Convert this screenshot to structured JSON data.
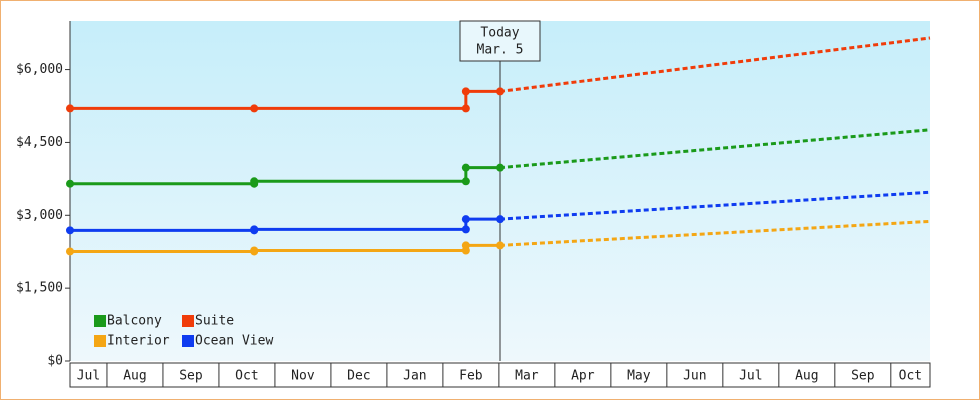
{
  "chart_data": {
    "type": "step-forecast",
    "xlim": [
      0.34,
      15.7
    ],
    "xticks": [
      {
        "value": 0,
        "label": "Jul"
      },
      {
        "value": 1,
        "label": "Aug"
      },
      {
        "value": 2,
        "label": "Sep"
      },
      {
        "value": 3,
        "label": "Oct"
      },
      {
        "value": 4,
        "label": "Nov"
      },
      {
        "value": 5,
        "label": "Dec"
      },
      {
        "value": 6,
        "label": "Jan"
      },
      {
        "value": 7,
        "label": "Feb"
      },
      {
        "value": 8,
        "label": "Mar"
      },
      {
        "value": 9,
        "label": "Apr"
      },
      {
        "value": 10,
        "label": "May"
      },
      {
        "value": 11,
        "label": "Jun"
      },
      {
        "value": 12,
        "label": "Jul"
      },
      {
        "value": 13,
        "label": "Aug"
      },
      {
        "value": 14,
        "label": "Sep"
      },
      {
        "value": 15,
        "label": "Oct"
      }
    ],
    "ylim": [
      0,
      7000
    ],
    "yticks": [
      {
        "value": 0,
        "label": "$0"
      },
      {
        "value": 1500,
        "label": "$1,500"
      },
      {
        "value": 3000,
        "label": "$3,000"
      },
      {
        "value": 4500,
        "label": "$4,500"
      },
      {
        "value": 6000,
        "label": "$6,000"
      }
    ],
    "today": {
      "x": 8.02,
      "label": [
        "Today",
        "Mar. 5"
      ]
    },
    "series": [
      {
        "name": "Balcony",
        "color": "#1a9a1a",
        "x": [
          0.34,
          3.63,
          3.63,
          7.41,
          7.41,
          8.02
        ],
        "values": [
          3650,
          3650,
          3700,
          3700,
          3980,
          3980
        ],
        "forecast_x": [
          8.02,
          15.7
        ],
        "forecast_values": [
          3980,
          4760
        ]
      },
      {
        "name": "Suite",
        "color": "#f03c0a",
        "x": [
          0.34,
          3.63,
          7.41,
          7.41,
          8.02
        ],
        "values": [
          5200,
          5200,
          5200,
          5550,
          5550
        ],
        "forecast_x": [
          8.02,
          15.7
        ],
        "forecast_values": [
          5550,
          6650
        ]
      },
      {
        "name": "Interior",
        "color": "#f4a614",
        "x": [
          0.34,
          3.63,
          3.63,
          7.41,
          7.41,
          8.02
        ],
        "values": [
          2255,
          2255,
          2275,
          2275,
          2380,
          2380
        ],
        "forecast_x": [
          8.02,
          15.7
        ],
        "forecast_values": [
          2380,
          2875
        ]
      },
      {
        "name": "Ocean View",
        "color": "#0f3cf0",
        "x": [
          0.34,
          3.63,
          3.63,
          7.41,
          7.41,
          8.02
        ],
        "values": [
          2690,
          2690,
          2710,
          2710,
          2920,
          2920
        ],
        "forecast_x": [
          8.02,
          15.7
        ],
        "forecast_values": [
          2920,
          3475
        ]
      }
    ]
  }
}
